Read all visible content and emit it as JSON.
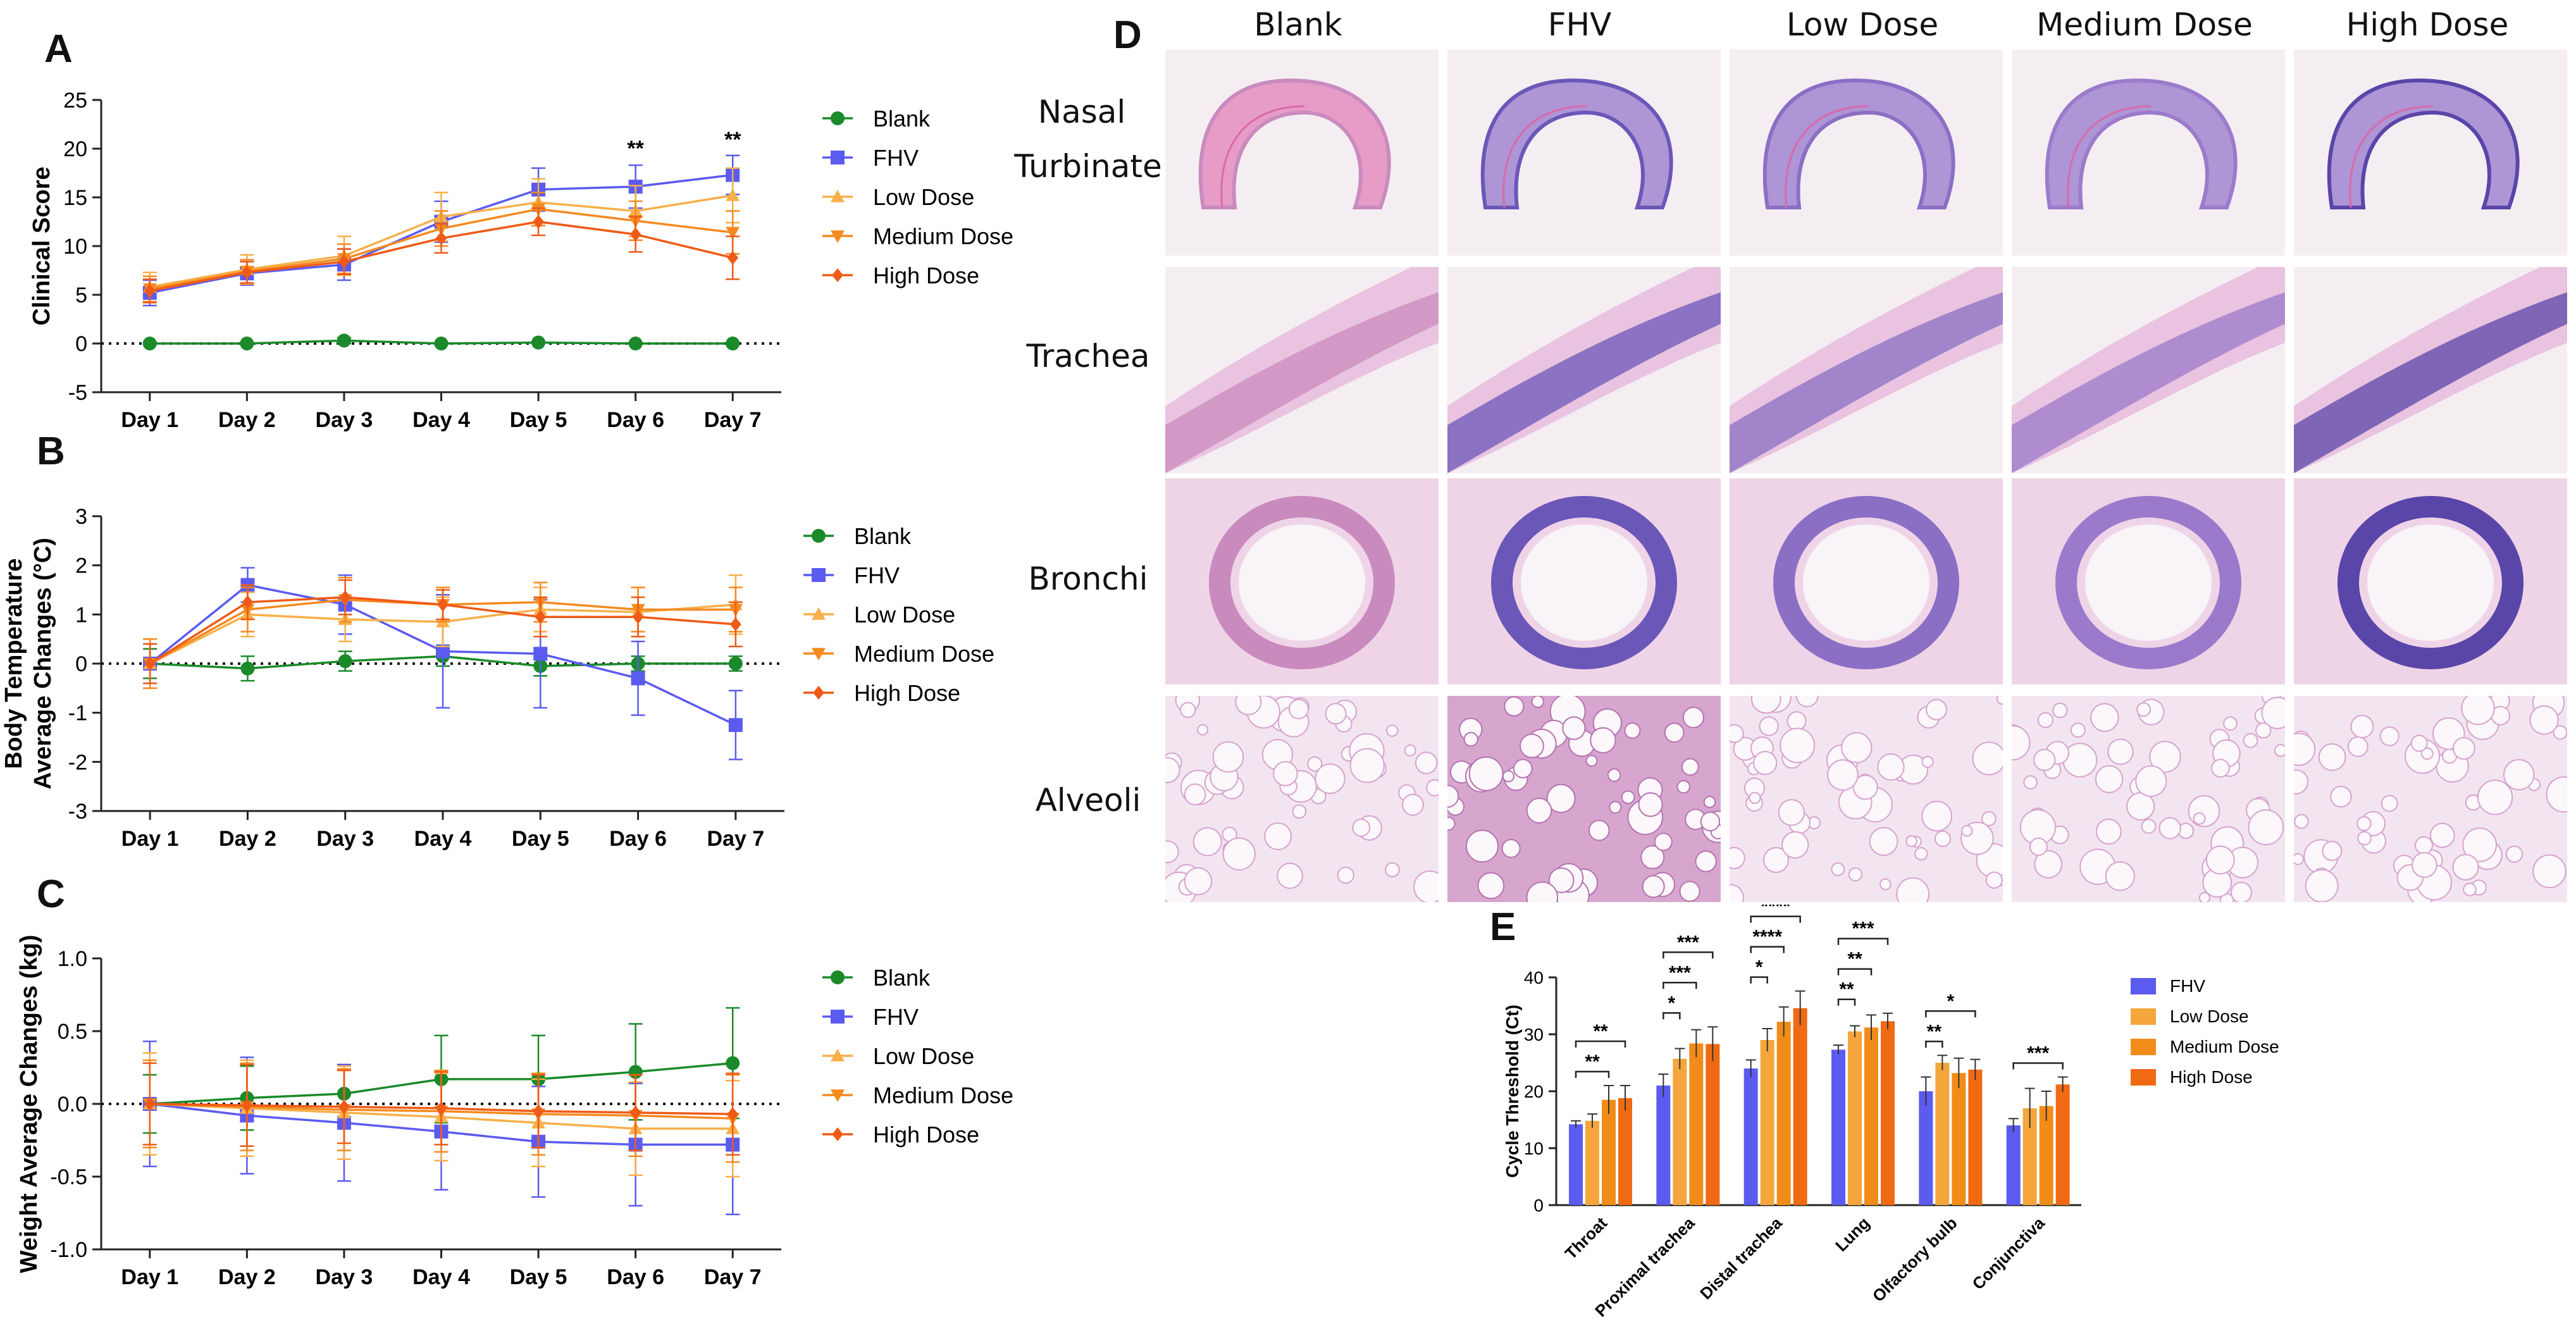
{
  "colors": {
    "blank": "#1a8a2a",
    "fhv": "#5b5bf0",
    "low": "#f7b04a",
    "medium": "#f58a1f",
    "high": "#ef5a16",
    "bar_fhv": "#5b5bf0",
    "bar_low": "#f4a63c",
    "bar_medium": "#f28c18",
    "bar_high": "#ef6a12"
  },
  "panels": {
    "a": "A",
    "b": "B",
    "c": "C",
    "d": "D",
    "e": "E"
  },
  "histology": {
    "columns": [
      "Blank",
      "FHV",
      "Low Dose",
      "Medium Dose",
      "High Dose"
    ],
    "rows": [
      "Nasal Turbinate",
      "Trachea",
      "Bronchi",
      "Alveoli"
    ],
    "row_first": "Nasal",
    "row_second": "Turbinate"
  },
  "chart_data": [
    {
      "id": "A",
      "type": "line",
      "ylabel": "Clinical Score",
      "xlabel": "",
      "categories": [
        "Day 1",
        "Day 2",
        "Day 3",
        "Day 4",
        "Day 5",
        "Day 6",
        "Day 7"
      ],
      "ylim": [
        -5,
        25
      ],
      "yticks": [
        -5,
        0,
        5,
        10,
        15,
        20,
        25
      ],
      "reference_line": 0,
      "series": [
        {
          "name": "Blank",
          "key": "blank",
          "marker": "circle",
          "values": [
            0,
            0,
            0.3,
            0,
            0.1,
            0,
            0
          ],
          "errors": [
            0.1,
            0.1,
            0.3,
            0.1,
            0.1,
            0.1,
            0.1
          ]
        },
        {
          "name": "FHV",
          "key": "fhv",
          "marker": "square",
          "values": [
            5.2,
            7.2,
            8.1,
            12.5,
            15.8,
            16.1,
            17.3
          ],
          "errors": [
            1.3,
            1.2,
            1.6,
            2.1,
            2.2,
            2.2,
            2.0
          ]
        },
        {
          "name": "Low Dose",
          "key": "low",
          "marker": "triangle-up",
          "values": [
            5.8,
            7.6,
            9.0,
            13.0,
            14.5,
            13.6,
            15.2
          ],
          "errors": [
            1.5,
            1.5,
            2.0,
            2.5,
            2.4,
            2.6,
            2.8
          ]
        },
        {
          "name": "Medium Dose",
          "key": "medium",
          "marker": "triangle-down",
          "values": [
            5.6,
            7.4,
            8.7,
            11.8,
            13.8,
            12.6,
            11.4
          ],
          "errors": [
            1.3,
            1.2,
            1.5,
            1.8,
            1.7,
            2.0,
            2.2
          ]
        },
        {
          "name": "High Dose",
          "key": "high",
          "marker": "diamond",
          "values": [
            5.4,
            7.3,
            8.4,
            10.8,
            12.5,
            11.2,
            8.8
          ],
          "errors": [
            1.2,
            1.1,
            1.3,
            1.5,
            1.4,
            1.8,
            2.2
          ]
        }
      ],
      "annotations": [
        {
          "category": "Day 6",
          "text": "**",
          "y": 19.3
        },
        {
          "category": "Day 7",
          "text": "**",
          "y": 20.2
        }
      ]
    },
    {
      "id": "B",
      "type": "line",
      "ylabel": "Body Temperature",
      "ylabel_2": "Average Changes (°C)",
      "xlabel": "",
      "categories": [
        "Day 1",
        "Day 2",
        "Day 3",
        "Day 4",
        "Day 5",
        "Day 6",
        "Day 7"
      ],
      "ylim": [
        -3,
        3
      ],
      "yticks": [
        -3,
        -2,
        -1,
        0,
        1,
        2,
        3
      ],
      "reference_line": 0,
      "series": [
        {
          "name": "Blank",
          "key": "blank",
          "marker": "circle",
          "values": [
            0,
            -0.1,
            0.05,
            0.15,
            -0.05,
            0,
            0
          ],
          "errors": [
            0.3,
            0.25,
            0.2,
            0.2,
            0.2,
            0.15,
            0.15
          ]
        },
        {
          "name": "FHV",
          "key": "fhv",
          "marker": "square",
          "values": [
            0,
            1.6,
            1.2,
            0.25,
            0.2,
            -0.3,
            -1.25
          ],
          "errors": [
            0.4,
            0.35,
            0.6,
            1.15,
            1.1,
            0.75,
            0.7
          ]
        },
        {
          "name": "Low Dose",
          "key": "low",
          "marker": "triangle-up",
          "values": [
            0,
            1.0,
            0.9,
            0.85,
            1.1,
            1.05,
            1.2
          ],
          "errors": [
            0.5,
            0.45,
            0.45,
            0.5,
            0.45,
            0.5,
            0.6
          ]
        },
        {
          "name": "Medium Dose",
          "key": "medium",
          "marker": "triangle-down",
          "values": [
            0,
            1.1,
            1.3,
            1.2,
            1.25,
            1.1,
            1.1
          ],
          "errors": [
            0.5,
            0.45,
            0.45,
            0.35,
            0.4,
            0.45,
            0.45
          ]
        },
        {
          "name": "High Dose",
          "key": "high",
          "marker": "diamond",
          "values": [
            0,
            1.25,
            1.35,
            1.2,
            0.95,
            0.95,
            0.8
          ],
          "errors": [
            0.4,
            0.35,
            0.35,
            0.3,
            0.4,
            0.4,
            0.45
          ]
        }
      ]
    },
    {
      "id": "C",
      "type": "line",
      "ylabel": "Weight Average Changes (kg)",
      "xlabel": "",
      "categories": [
        "Day 1",
        "Day 2",
        "Day 3",
        "Day 4",
        "Day 5",
        "Day 6",
        "Day 7"
      ],
      "ylim": [
        -1.0,
        1.0
      ],
      "yticks": [
        "-1.0",
        "-0.5",
        "0.0",
        "0.5",
        "1.0"
      ],
      "reference_line": 0,
      "series": [
        {
          "name": "Blank",
          "key": "blank",
          "marker": "circle",
          "values": [
            0,
            0.04,
            0.07,
            0.17,
            0.17,
            0.22,
            0.28
          ],
          "errors": [
            0.2,
            0.22,
            0.2,
            0.3,
            0.3,
            0.33,
            0.38
          ]
        },
        {
          "name": "FHV",
          "key": "fhv",
          "marker": "square",
          "values": [
            0,
            -0.08,
            -0.13,
            -0.19,
            -0.26,
            -0.28,
            -0.28
          ],
          "errors": [
            0.43,
            0.4,
            0.4,
            0.4,
            0.38,
            0.42,
            0.48
          ]
        },
        {
          "name": "Low Dose",
          "key": "low",
          "marker": "triangle-up",
          "values": [
            0,
            -0.03,
            -0.06,
            -0.09,
            -0.13,
            -0.17,
            -0.17
          ],
          "errors": [
            0.35,
            0.33,
            0.32,
            0.3,
            0.3,
            0.32,
            0.33
          ]
        },
        {
          "name": "Medium Dose",
          "key": "medium",
          "marker": "triangle-down",
          "values": [
            0,
            -0.02,
            -0.04,
            -0.05,
            -0.07,
            -0.08,
            -0.1
          ],
          "errors": [
            0.3,
            0.3,
            0.28,
            0.28,
            0.28,
            0.28,
            0.3
          ]
        },
        {
          "name": "High Dose",
          "key": "high",
          "marker": "diamond",
          "values": [
            0,
            -0.01,
            -0.02,
            -0.03,
            -0.05,
            -0.06,
            -0.07
          ],
          "errors": [
            0.28,
            0.28,
            0.25,
            0.25,
            0.25,
            0.26,
            0.28
          ]
        }
      ]
    },
    {
      "id": "E",
      "type": "bar",
      "ylabel": "Cycle Threshold (Ct)",
      "xlabel": "",
      "categories": [
        "Throat",
        "Proximal trachea",
        "Distal trachea",
        "Lung",
        "Olfactory bulb",
        "Conjunctiva"
      ],
      "ylim": [
        0,
        40
      ],
      "yticks": [
        0,
        10,
        20,
        30,
        40
      ],
      "series": [
        {
          "name": "FHV",
          "key": "bar_fhv",
          "values": [
            14.2,
            21.0,
            24.0,
            27.3,
            20.0,
            14.0
          ],
          "errors": [
            0.6,
            2.0,
            1.5,
            0.8,
            2.5,
            1.2
          ]
        },
        {
          "name": "Low Dose",
          "key": "bar_low",
          "values": [
            14.8,
            25.7,
            29.0,
            30.5,
            25.0,
            17.0
          ],
          "errors": [
            1.2,
            1.8,
            2.0,
            1.0,
            1.3,
            3.5
          ]
        },
        {
          "name": "Medium Dose",
          "key": "bar_medium",
          "values": [
            18.5,
            28.4,
            32.2,
            31.2,
            23.2,
            17.4
          ],
          "errors": [
            2.5,
            2.4,
            2.6,
            2.2,
            2.6,
            2.6
          ]
        },
        {
          "name": "High Dose",
          "key": "bar_high",
          "values": [
            18.8,
            28.3,
            34.6,
            32.3,
            23.8,
            21.2
          ],
          "errors": [
            2.2,
            3.0,
            3.0,
            1.4,
            1.8,
            1.3
          ]
        }
      ],
      "significance": [
        {
          "category": 0,
          "from": 0,
          "to": 2,
          "text": "**",
          "level": 0
        },
        {
          "category": 0,
          "from": 0,
          "to": 3,
          "text": "**",
          "level": 1
        },
        {
          "category": 1,
          "from": 0,
          "to": 1,
          "text": "*",
          "level": 0
        },
        {
          "category": 1,
          "from": 0,
          "to": 2,
          "text": "***",
          "level": 1
        },
        {
          "category": 1,
          "from": 0,
          "to": 3,
          "text": "***",
          "level": 2
        },
        {
          "category": 2,
          "from": 0,
          "to": 1,
          "text": "*",
          "level": 0
        },
        {
          "category": 2,
          "from": 0,
          "to": 2,
          "text": "****",
          "level": 1
        },
        {
          "category": 2,
          "from": 0,
          "to": 3,
          "text": "****",
          "level": 2
        },
        {
          "category": 3,
          "from": 0,
          "to": 1,
          "text": "**",
          "level": 0
        },
        {
          "category": 3,
          "from": 0,
          "to": 2,
          "text": "**",
          "level": 1
        },
        {
          "category": 3,
          "from": 0,
          "to": 3,
          "text": "***",
          "level": 2
        },
        {
          "category": 4,
          "from": 0,
          "to": 1,
          "text": "**",
          "level": 0
        },
        {
          "category": 4,
          "from": 0,
          "to": 3,
          "text": "*",
          "level": 1
        },
        {
          "category": 5,
          "from": 0,
          "to": 3,
          "text": "***",
          "level": 0
        }
      ]
    }
  ]
}
